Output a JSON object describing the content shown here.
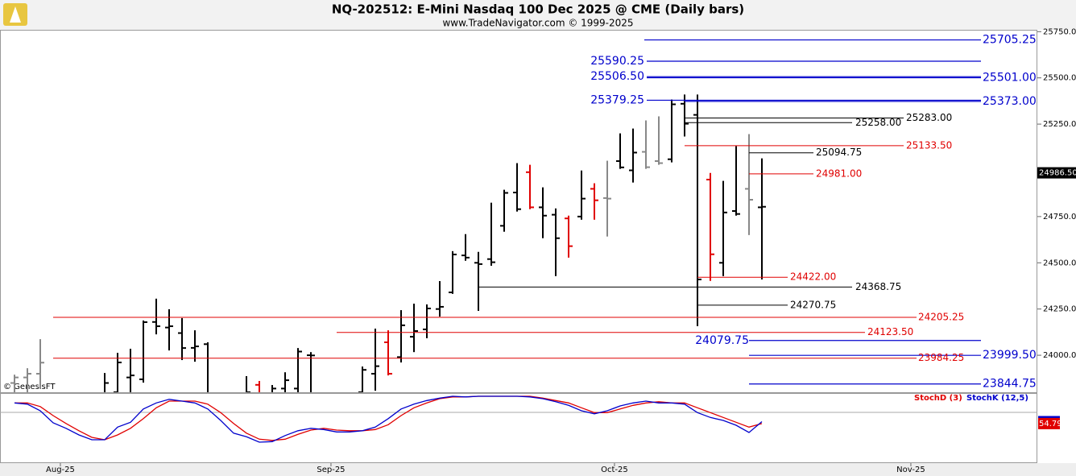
{
  "chart_data": [
    {
      "type": "ohlc",
      "title": "NQ-202512:  E-Mini Nasdaq 100 Dec 2025 @ CME  (Daily bars)",
      "subtitle": "www.TradeNavigator.com © 1999-2025",
      "source": "© GenesisFT",
      "categories": [
        null,
        null,
        null,
        null,
        null,
        null,
        null,
        null,
        null,
        null,
        null,
        null,
        null,
        null,
        null,
        null,
        null,
        null,
        null,
        null,
        null,
        null,
        null,
        null,
        null,
        null,
        null,
        null,
        null,
        null,
        null,
        null,
        null,
        null,
        null,
        null,
        null,
        null,
        null,
        null,
        null,
        null,
        null,
        null,
        null,
        null,
        null,
        null,
        null,
        null,
        null,
        null,
        null,
        null,
        null,
        null,
        null,
        null,
        null
      ],
      "open": [
        23850,
        23880,
        23900,
        null,
        null,
        null,
        null,
        23750,
        23800,
        23880,
        23870,
        24180,
        24150,
        24120,
        24040,
        24060,
        null,
        null,
        23750,
        23840,
        23760,
        23820,
        23820,
        24000,
        null,
        null,
        null,
        23800,
        23900,
        24070,
        23990,
        24100,
        24140,
        24250,
        24340,
        24540,
        24500,
        24520,
        24700,
        24880,
        24990,
        24800,
        24760,
        24740,
        24750,
        24900,
        24850,
        25050,
        25000,
        25100,
        25050,
        25060,
        25360,
        25300,
        24950,
        24500,
        24780,
        24900,
        24800
      ],
      "high": [
        23895,
        23930,
        24087,
        null,
        null,
        null,
        null,
        23904,
        24013,
        24035,
        24188,
        24306,
        24249,
        24201,
        24135,
        24070,
        null,
        null,
        23887,
        23861,
        23839,
        23908,
        24039,
        24017,
        null,
        null,
        null,
        23939,
        24144,
        24135,
        24244,
        24279,
        24275,
        24401,
        24563,
        24655,
        24559,
        24825,
        24895,
        25039,
        25030,
        24908,
        24794,
        24755,
        24999,
        24930,
        25052,
        25200,
        25226,
        25270,
        25292,
        25383,
        25410,
        25410,
        24986,
        24943,
        25131,
        25196,
        25065
      ],
      "low": [
        23780,
        23790,
        23820,
        null,
        null,
        null,
        null,
        23700,
        23760,
        23780,
        23852,
        24113,
        24026,
        23974,
        23965,
        23740,
        null,
        null,
        23700,
        23720,
        23700,
        23760,
        23780,
        23760,
        null,
        null,
        null,
        23700,
        23808,
        23891,
        23961,
        24017,
        24092,
        24209,
        24332,
        24511,
        24240,
        24484,
        24668,
        24777,
        24790,
        24633,
        24428,
        24528,
        24733,
        24733,
        24642,
        25008,
        24934,
        25008,
        25030,
        25043,
        25183,
        24157,
        24402,
        24428,
        24755,
        24650,
        24410
      ],
      "close": [
        23880,
        23900,
        23960,
        null,
        null,
        null,
        null,
        23850,
        23961,
        23891,
        24179,
        24157,
        24157,
        24039,
        24048,
        23780,
        null,
        null,
        23800,
        23760,
        23820,
        23865,
        24020,
        23999,
        null,
        null,
        null,
        23921,
        23941,
        23900,
        24162,
        24131,
        24253,
        24262,
        24545,
        24528,
        24493,
        24503,
        24878,
        24790,
        24800,
        24755,
        24633,
        24590,
        24847,
        24838,
        24847,
        25016,
        25096,
        25017,
        25039,
        25357,
        25252,
        24410,
        24546,
        24772,
        24764,
        24841,
        24803
      ],
      "bar_colors": [
        "#888888",
        "#888888",
        "#888888",
        "#000000",
        "#000000",
        "#000000",
        "#000000",
        "#000000",
        "#000000",
        "#000000",
        "#000000",
        "#000000",
        "#000000",
        "#000000",
        "#000000",
        "#000000",
        "#000000",
        "#000000",
        "#000000",
        "#e00000",
        "#000000",
        "#000000",
        "#000000",
        "#000000",
        "#000000",
        "#000000",
        "#000000",
        "#000000",
        "#000000",
        "#e00000",
        "#000000",
        "#000000",
        "#000000",
        "#000000",
        "#000000",
        "#000000",
        "#000000",
        "#000000",
        "#000000",
        "#000000",
        "#e00000",
        "#000000",
        "#000000",
        "#e00000",
        "#000000",
        "#e00000",
        "#888888",
        "#000000",
        "#000000",
        "#888888",
        "#888888",
        "#000000",
        "#000000",
        "#000000",
        "#e00000",
        "#000000",
        "#000000",
        "#888888",
        "#000000"
      ],
      "xlim": [
        -1.125,
        79.375
      ],
      "xticks": [
        {
          "value": 3.56,
          "label": "Aug-25"
        },
        {
          "value": 24.56,
          "label": "Sep-25"
        },
        {
          "value": 46.56,
          "label": "Oct-25"
        },
        {
          "value": 69.56,
          "label": "Nov-25"
        }
      ],
      "ylim": [
        23800,
        25760
      ],
      "yticks": [
        {
          "value": 25750,
          "label": "25750.00"
        },
        {
          "value": 25500,
          "label": "25500.00"
        },
        {
          "value": 25250,
          "label": "25250.00"
        },
        {
          "value": 24750,
          "label": "24750.00"
        },
        {
          "value": 24500,
          "label": "24500.00"
        },
        {
          "value": 24250,
          "label": "24250.00"
        },
        {
          "value": 24000,
          "label": "24000.00"
        }
      ],
      "last_price": {
        "value": 24986.5,
        "label": "24986.50"
      },
      "levels": [
        {
          "value": 25705.25,
          "color": "#0000cc"
        },
        {
          "value": 25590.25,
          "color": "#0000cc"
        },
        {
          "value": 25506.5,
          "label": "25506.50",
          "color": "#0000cc"
        },
        {
          "value": 25501,
          "label": "25501.00",
          "color": "#0000cc"
        },
        {
          "value": 25379.25,
          "color": "#0000cc"
        },
        {
          "value": 25373,
          "label": "25373.00",
          "color": "#0000cc"
        },
        {
          "value": 25283,
          "label": "25283.00",
          "color": "#000000"
        },
        {
          "value": 25258,
          "label": "25258.00",
          "color": "#000000"
        },
        {
          "value": 25133.5,
          "label": "25133.50",
          "color": "#e00000"
        },
        {
          "value": 25094.75,
          "color": "#000000"
        },
        {
          "value": 24981,
          "label": "24981.00",
          "color": "#e00000"
        },
        {
          "value": 24422,
          "label": "24422.00",
          "color": "#e00000"
        },
        {
          "value": 24368.75,
          "color": "#000000"
        },
        {
          "value": 24270.75,
          "color": "#000000"
        },
        {
          "value": 24205.25,
          "color": "#e00000"
        },
        {
          "value": 24123.5,
          "label": "24123.50",
          "color": "#e00000"
        },
        {
          "value": 24079.75,
          "color": "#0000cc"
        },
        {
          "value": 23999.5,
          "label": "23999.50",
          "color": "#0000cc"
        },
        {
          "value": 23984.25,
          "color": "#e00000"
        },
        {
          "value": 23844.75,
          "color": "#0000cc"
        }
      ]
    },
    {
      "type": "line",
      "xlim": [
        -1.125,
        79.375
      ],
      "ylim": [
        0,
        100
      ],
      "series": [
        {
          "name": "StochD (3)",
          "color": "#e00000",
          "values": [
            89,
            89,
            83,
            68,
            55,
            43,
            32,
            28,
            36,
            47,
            63,
            81,
            92,
            92,
            92,
            87,
            73,
            55,
            39,
            29,
            27,
            29,
            37,
            44,
            47,
            44,
            43,
            43,
            45,
            53,
            68,
            81,
            89,
            96,
            99,
            99,
            100,
            100,
            100,
            100,
            100,
            97,
            93,
            89,
            81,
            73,
            73,
            79,
            85,
            89,
            91,
            89,
            89,
            81,
            73,
            65,
            57,
            49,
            54.79
          ]
        },
        {
          "name": "StochK (12,5)",
          "color": "#0000cc",
          "values": [
            89,
            87,
            76,
            56,
            47,
            36,
            28,
            28,
            49,
            57,
            79,
            89,
            95,
            92,
            89,
            79,
            60,
            39,
            33,
            24,
            25,
            35,
            43,
            47,
            45,
            41,
            41,
            43,
            49,
            63,
            79,
            87,
            93,
            97,
            100,
            99,
            100,
            100,
            100,
            100,
            99,
            96,
            91,
            85,
            76,
            71,
            76,
            84,
            89,
            92,
            89,
            89,
            87,
            73,
            65,
            60,
            52,
            40,
            58
          ]
        }
      ]
    }
  ]
}
